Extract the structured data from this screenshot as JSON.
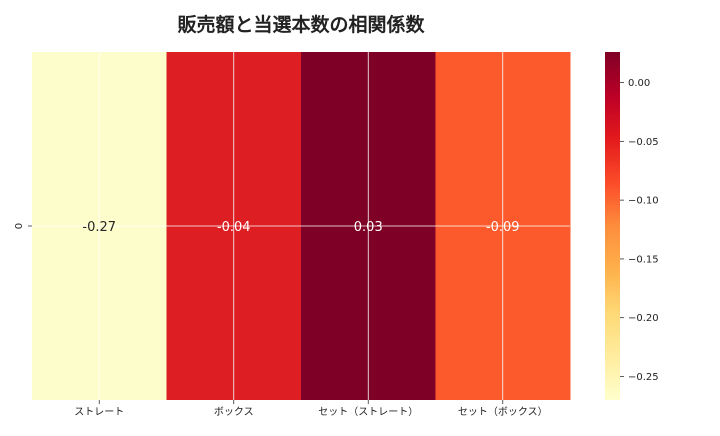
{
  "chart_data": {
    "type": "heatmap",
    "title": "販売額と当選本数の相関係数",
    "xlabel": "",
    "ylabel": "",
    "row_labels": [
      "0"
    ],
    "categories": [
      "ストレート",
      "ボックス",
      "セット（ストレート）",
      "セット（ボックス）"
    ],
    "values": [
      [
        -0.27,
        -0.04,
        0.03,
        -0.09
      ]
    ],
    "value_labels": [
      "-0.27",
      "-0.04",
      "0.03",
      "-0.09"
    ],
    "colorbar": {
      "range": [
        -0.27,
        0.026
      ],
      "ticks": [
        0.0,
        -0.05,
        -0.1,
        -0.15,
        -0.2,
        -0.25
      ],
      "tick_labels": [
        "0.00",
        "−0.05",
        "−0.10",
        "−0.15",
        "−0.20",
        "−0.25"
      ],
      "colormap": "YlOrRd"
    },
    "cell_colors": [
      "#fdfdcb",
      "#dd1f23",
      "#7f0026",
      "#fc5a2c"
    ],
    "grid": true
  }
}
